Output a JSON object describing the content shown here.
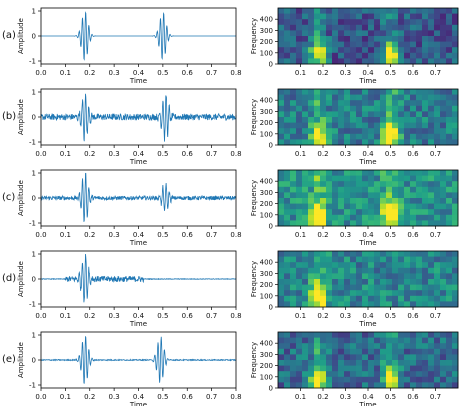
{
  "panel_labels": [
    "(a)",
    "(b)",
    "(c)",
    "(d)",
    "(e)"
  ],
  "chart_data": [
    {
      "type": "line",
      "panel": "(a)",
      "xlabel": "Time",
      "ylabel": "Amplitude",
      "xlim": [
        0.0,
        0.8
      ],
      "ylim": [
        -1,
        1
      ],
      "xticks": [
        "0.0",
        "0.1",
        "0.2",
        "0.3",
        "0.4",
        "0.5",
        "0.6",
        "0.7",
        "0.8"
      ],
      "yticks": [
        "1",
        "0",
        "-1"
      ],
      "color": "#1f77b4",
      "bursts": [
        {
          "center": 0.18,
          "amplitude": 1.0
        },
        {
          "center": 0.5,
          "amplitude": 0.97
        }
      ],
      "noise_level": 0.0
    },
    {
      "type": "heatmap",
      "panel": "(a)",
      "xlabel": "Time",
      "ylabel": "Frequency",
      "xlim": [
        0.0,
        0.8
      ],
      "ylim": [
        0,
        500
      ],
      "xticks": [
        "0.1",
        "0.2",
        "0.3",
        "0.4",
        "0.5",
        "0.6",
        "0.7"
      ],
      "yticks": [
        "0",
        "100",
        "200",
        "300",
        "400"
      ],
      "colormap": "viridis",
      "hotspots": [
        {
          "time": 0.18,
          "freq": 100
        },
        {
          "time": 0.5,
          "freq": 100
        }
      ],
      "background_level": 0.28
    },
    {
      "type": "line",
      "panel": "(b)",
      "xlabel": "Time",
      "ylabel": "Amplitude",
      "xlim": [
        0.0,
        0.8
      ],
      "ylim": [
        -1,
        1
      ],
      "xticks": [
        "0.0",
        "0.1",
        "0.2",
        "0.3",
        "0.4",
        "0.5",
        "0.6",
        "0.7",
        "0.8"
      ],
      "yticks": [
        "1",
        "0",
        "-1"
      ],
      "color": "#1f77b4",
      "bursts": [
        {
          "center": 0.18,
          "amplitude": 0.95
        },
        {
          "center": 0.51,
          "amplitude": 0.92
        }
      ],
      "noise_level": 0.13
    },
    {
      "type": "heatmap",
      "panel": "(b)",
      "xlabel": "Time",
      "ylabel": "Frequency",
      "xlim": [
        0.0,
        0.8
      ],
      "ylim": [
        0,
        500
      ],
      "xticks": [
        "0.1",
        "0.2",
        "0.3",
        "0.4",
        "0.5",
        "0.6",
        "0.7"
      ],
      "yticks": [
        "0",
        "100",
        "200",
        "300",
        "400"
      ],
      "colormap": "viridis",
      "hotspots": [
        {
          "time": 0.18,
          "freq": 80
        },
        {
          "time": 0.5,
          "freq": 80
        }
      ],
      "background_level": 0.42
    },
    {
      "type": "line",
      "panel": "(c)",
      "xlabel": "Time",
      "ylabel": "Amplitude",
      "xlim": [
        0.0,
        0.8
      ],
      "ylim": [
        -1,
        1
      ],
      "xticks": [
        "0.0",
        "0.1",
        "0.2",
        "0.3",
        "0.4",
        "0.5",
        "0.6",
        "0.7",
        "0.8"
      ],
      "yticks": [
        "1",
        "0",
        "-1"
      ],
      "color": "#1f77b4",
      "bursts": [
        {
          "center": 0.18,
          "amplitude": 1.0
        },
        {
          "center": 0.51,
          "amplitude": 0.6
        }
      ],
      "noise_level": 0.08
    },
    {
      "type": "heatmap",
      "panel": "(c)",
      "xlabel": "Time",
      "ylabel": "Frequency",
      "xlim": [
        0.0,
        0.8
      ],
      "ylim": [
        0,
        500
      ],
      "xticks": [
        "0.1",
        "0.2",
        "0.3",
        "0.4",
        "0.5",
        "0.6",
        "0.7"
      ],
      "yticks": [
        "0",
        "100",
        "200",
        "300",
        "400"
      ],
      "colormap": "viridis",
      "hotspots": [
        {
          "time": 0.18,
          "freq": 100
        },
        {
          "time": 0.5,
          "freq": 100
        }
      ],
      "background_level": 0.5
    },
    {
      "type": "line",
      "panel": "(d)",
      "xlabel": "Time",
      "ylabel": "Amplitude",
      "xlim": [
        0.0,
        0.8
      ],
      "ylim": [
        -1,
        1
      ],
      "xticks": [
        "0.0",
        "0.1",
        "0.2",
        "0.3",
        "0.4",
        "0.5",
        "0.6",
        "0.7",
        "0.8"
      ],
      "yticks": [
        "1",
        "0",
        "-1"
      ],
      "color": "#1f77b4",
      "bursts": [
        {
          "center": 0.18,
          "amplitude": 1.0
        }
      ],
      "noise_level": 0.12,
      "noise_span": [
        0.1,
        0.42
      ]
    },
    {
      "type": "heatmap",
      "panel": "(d)",
      "xlabel": "Time",
      "ylabel": "Frequency",
      "xlim": [
        0.0,
        0.8
      ],
      "ylim": [
        0,
        500
      ],
      "xticks": [
        "0.1",
        "0.2",
        "0.3",
        "0.4",
        "0.5",
        "0.6",
        "0.7"
      ],
      "yticks": [
        "0",
        "100",
        "200",
        "300",
        "400"
      ],
      "colormap": "viridis",
      "hotspots": [
        {
          "time": 0.18,
          "freq": 100
        }
      ],
      "background_level": 0.45
    },
    {
      "type": "line",
      "panel": "(e)",
      "xlabel": "Time",
      "ylabel": "Amplitude",
      "xlim": [
        0.0,
        0.8
      ],
      "ylim": [
        -1,
        1
      ],
      "xticks": [
        "0.0",
        "0.1",
        "0.2",
        "0.3",
        "0.4",
        "0.5",
        "0.6",
        "0.7",
        "0.8"
      ],
      "yticks": [
        "1",
        "0",
        "-1"
      ],
      "color": "#1f77b4",
      "bursts": [
        {
          "center": 0.18,
          "amplitude": 1.0
        },
        {
          "center": 0.49,
          "amplitude": 0.95
        }
      ],
      "noise_level": 0.02
    },
    {
      "type": "heatmap",
      "panel": "(e)",
      "xlabel": "Time",
      "ylabel": "Frequency",
      "xlim": [
        0.0,
        0.8
      ],
      "ylim": [
        0,
        500
      ],
      "xticks": [
        "0.1",
        "0.2",
        "0.3",
        "0.4",
        "0.5",
        "0.6",
        "0.7"
      ],
      "yticks": [
        "0",
        "100",
        "200",
        "300",
        "400"
      ],
      "colormap": "viridis",
      "hotspots": [
        {
          "time": 0.18,
          "freq": 90
        },
        {
          "time": 0.5,
          "freq": 90
        }
      ],
      "background_level": 0.35
    }
  ]
}
